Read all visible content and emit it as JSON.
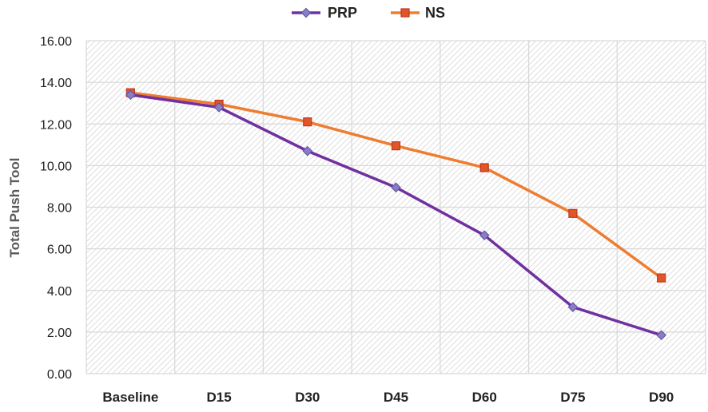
{
  "chart_data": {
    "type": "line",
    "title": "",
    "xlabel": "",
    "ylabel": "Total Push Tool",
    "categories": [
      "Baseline",
      "D15",
      "D30",
      "D45",
      "D60",
      "D75",
      "D90"
    ],
    "ylim": [
      0,
      16
    ],
    "yticks": [
      "0.00",
      "2.00",
      "4.00",
      "6.00",
      "8.00",
      "10.00",
      "12.00",
      "14.00",
      "16.00"
    ],
    "grid": true,
    "legend_position": "top",
    "series": [
      {
        "name": "PRP",
        "color": "#7030A0",
        "marker": "diamond",
        "values": [
          13.4,
          12.8,
          10.7,
          8.95,
          6.65,
          3.2,
          1.85
        ]
      },
      {
        "name": "NS",
        "color": "#ED7D31",
        "marker": "square",
        "values": [
          13.5,
          12.95,
          12.1,
          10.95,
          9.9,
          7.7,
          4.6
        ]
      }
    ]
  }
}
